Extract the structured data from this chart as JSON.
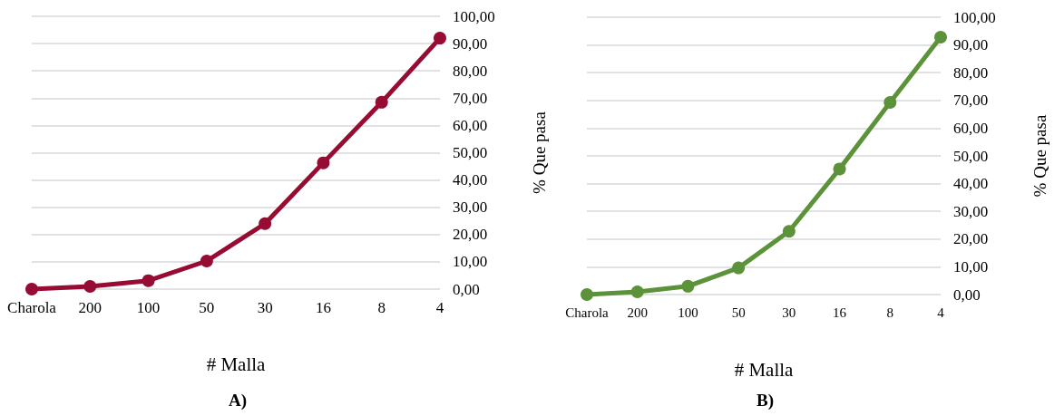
{
  "chart_data": [
    {
      "type": "line",
      "title": "A)",
      "xlabel": "# Malla",
      "ylabel": "% Que pasa",
      "categories": [
        "Charola",
        "200",
        "100",
        "50",
        "30",
        "16",
        "8",
        "4"
      ],
      "series": [
        {
          "color": "#960c33",
          "values": [
            0,
            1.0,
            3.1,
            10.3,
            24.0,
            46.3,
            68.5,
            92.0
          ]
        }
      ],
      "ylim": [
        0,
        100
      ],
      "yticks": [
        {
          "value": 0,
          "label": "0,00"
        },
        {
          "value": 10,
          "label": "10,00"
        },
        {
          "value": 20,
          "label": "20,00"
        },
        {
          "value": 30,
          "label": "30,00"
        },
        {
          "value": 40,
          "label": "40,00"
        },
        {
          "value": 50,
          "label": "50,00"
        },
        {
          "value": 60,
          "label": "60,00"
        },
        {
          "value": 70,
          "label": "70,00"
        },
        {
          "value": 80,
          "label": "80,00"
        },
        {
          "value": 90,
          "label": "90,00"
        },
        {
          "value": 100,
          "label": "100,00"
        }
      ],
      "grid": "y",
      "marker": "circle",
      "line_style": "solid"
    },
    {
      "type": "line",
      "title": "B)",
      "xlabel": "# Malla",
      "ylabel": "% Que pasa",
      "categories": [
        "Charola",
        "200",
        "100",
        "50",
        "30",
        "16",
        "8",
        "4"
      ],
      "series": [
        {
          "color": "#5c9239",
          "values": [
            0,
            1.0,
            3.0,
            9.6,
            22.8,
            45.3,
            69.3,
            92.8
          ]
        }
      ],
      "ylim": [
        0,
        100
      ],
      "yticks": [
        {
          "value": 0,
          "label": "0,00"
        },
        {
          "value": 10,
          "label": "10,00"
        },
        {
          "value": 20,
          "label": "20,00"
        },
        {
          "value": 30,
          "label": "30,00"
        },
        {
          "value": 40,
          "label": "40,00"
        },
        {
          "value": 50,
          "label": "50,00"
        },
        {
          "value": 60,
          "label": "60,00"
        },
        {
          "value": 70,
          "label": "70,00"
        },
        {
          "value": 80,
          "label": "80,00"
        },
        {
          "value": 90,
          "label": "90,00"
        },
        {
          "value": 100,
          "label": "100,00"
        }
      ],
      "grid": "y",
      "marker": "circle",
      "line_style": "solid"
    }
  ]
}
